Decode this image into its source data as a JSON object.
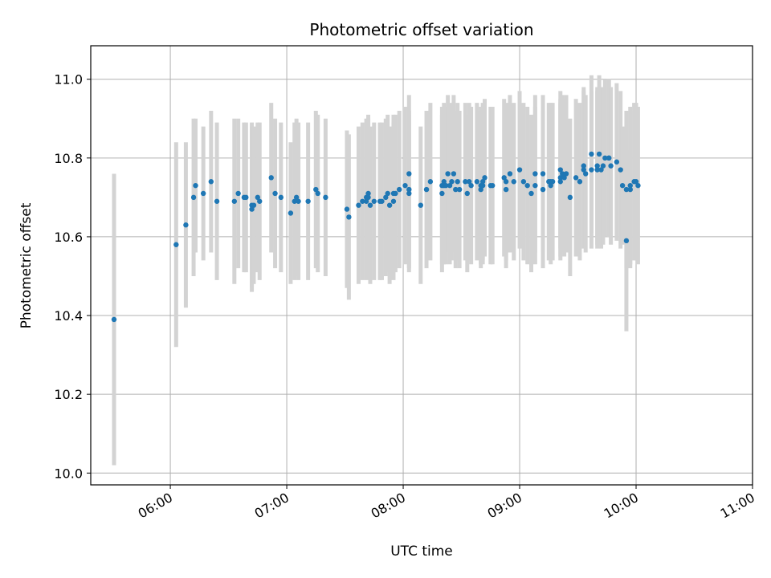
{
  "chart_data": {
    "type": "scatter",
    "title": "Photometric offset variation",
    "xlabel": "UTC time",
    "ylabel": "Photometric offset",
    "x_tick_labels": [
      "06:00",
      "07:00",
      "08:00",
      "09:00",
      "10:00",
      "11:00"
    ],
    "y_tick_labels": [
      "10.0",
      "10.2",
      "10.4",
      "10.6",
      "10.8",
      "11.0"
    ],
    "y_ticks": [
      10.0,
      10.2,
      10.4,
      10.6,
      10.8,
      11.0
    ],
    "grid": true,
    "colors": {
      "points": "#1f77b4",
      "error_bars": "#d3d3d3",
      "grid": "#b0b0b0"
    },
    "series": [
      {
        "x": [
          "05:31",
          "06:03",
          "06:08",
          "06:12",
          "06:13",
          "06:17",
          "06:21",
          "06:24",
          "06:33",
          "06:35",
          "06:38",
          "06:39",
          "06:42",
          "06:42",
          "06:43",
          "06:45",
          "06:46",
          "06:52",
          "06:54",
          "06:57",
          "07:02",
          "07:04",
          "07:05",
          "07:06",
          "07:11",
          "07:15",
          "07:16",
          "07:20",
          "07:31",
          "07:32",
          "07:37",
          "07:39",
          "07:41",
          "07:41",
          "07:42",
          "07:42",
          "07:43",
          "07:45",
          "07:48",
          "07:49",
          "07:51",
          "07:52",
          "07:53",
          "07:55",
          "07:55",
          "07:56",
          "07:58",
          "08:01",
          "08:03",
          "08:03",
          "08:03",
          "08:09",
          "08:12",
          "08:14",
          "08:20",
          "08:20",
          "08:21",
          "08:21",
          "08:22",
          "08:23",
          "08:24",
          "08:25",
          "08:26",
          "08:27",
          "08:28",
          "08:29",
          "08:32",
          "08:33",
          "08:34",
          "08:35",
          "08:38",
          "08:40",
          "08:40",
          "08:41",
          "08:41",
          "08:42",
          "08:45",
          "08:46",
          "08:52",
          "08:53",
          "08:53",
          "08:55",
          "08:57",
          "09:00",
          "09:02",
          "09:04",
          "09:06",
          "09:08",
          "09:08",
          "09:12",
          "09:12",
          "09:15",
          "09:16",
          "09:16",
          "09:17",
          "09:21",
          "09:21",
          "09:21",
          "09:22",
          "09:23",
          "09:24",
          "09:26",
          "09:29",
          "09:31",
          "09:33",
          "09:33",
          "09:34",
          "09:37",
          "09:37",
          "09:40",
          "09:40",
          "09:41",
          "09:42",
          "09:43",
          "09:44",
          "09:46",
          "09:46",
          "09:47",
          "09:50",
          "09:52",
          "09:53",
          "09:55",
          "09:55",
          "09:57",
          "09:57",
          "09:59",
          "10:00",
          "10:01"
        ],
        "y": [
          10.39,
          10.58,
          10.63,
          10.7,
          10.73,
          10.71,
          10.74,
          10.69,
          10.69,
          10.71,
          10.7,
          10.7,
          10.68,
          10.67,
          10.68,
          10.7,
          10.69,
          10.75,
          10.71,
          10.7,
          10.66,
          10.69,
          10.7,
          10.69,
          10.69,
          10.72,
          10.71,
          10.7,
          10.67,
          10.65,
          10.68,
          10.69,
          10.7,
          10.69,
          10.71,
          10.7,
          10.68,
          10.69,
          10.69,
          10.69,
          10.7,
          10.71,
          10.68,
          10.69,
          10.71,
          10.71,
          10.72,
          10.73,
          10.76,
          10.71,
          10.72,
          10.68,
          10.72,
          10.74,
          10.71,
          10.73,
          10.74,
          10.73,
          10.73,
          10.76,
          10.73,
          10.74,
          10.76,
          10.72,
          10.74,
          10.72,
          10.74,
          10.71,
          10.74,
          10.73,
          10.74,
          10.72,
          10.73,
          10.73,
          10.74,
          10.75,
          10.73,
          10.73,
          10.75,
          10.72,
          10.74,
          10.76,
          10.74,
          10.77,
          10.74,
          10.73,
          10.71,
          10.73,
          10.76,
          10.76,
          10.72,
          10.74,
          10.74,
          10.73,
          10.74,
          10.75,
          10.74,
          10.77,
          10.76,
          10.75,
          10.76,
          10.7,
          10.75,
          10.74,
          10.77,
          10.78,
          10.76,
          10.77,
          10.81,
          10.77,
          10.78,
          10.81,
          10.77,
          10.78,
          10.8,
          10.8,
          10.8,
          10.78,
          10.79,
          10.77,
          10.73,
          10.59,
          10.72,
          10.73,
          10.72,
          10.74,
          10.74,
          10.73
        ],
        "yerr": [
          0.37,
          0.26,
          0.21,
          0.2,
          0.17,
          0.17,
          0.18,
          0.2,
          0.21,
          0.19,
          0.19,
          0.19,
          0.21,
          0.21,
          0.2,
          0.19,
          0.2,
          0.19,
          0.19,
          0.19,
          0.18,
          0.2,
          0.2,
          0.2,
          0.2,
          0.2,
          0.2,
          0.2,
          0.2,
          0.21,
          0.2,
          0.2,
          0.2,
          0.2,
          0.2,
          0.2,
          0.2,
          0.2,
          0.2,
          0.2,
          0.2,
          0.2,
          0.2,
          0.2,
          0.2,
          0.2,
          0.2,
          0.2,
          0.2,
          0.2,
          0.2,
          0.2,
          0.2,
          0.2,
          0.2,
          0.2,
          0.2,
          0.2,
          0.2,
          0.2,
          0.2,
          0.2,
          0.2,
          0.2,
          0.2,
          0.2,
          0.2,
          0.2,
          0.2,
          0.2,
          0.2,
          0.2,
          0.2,
          0.2,
          0.2,
          0.2,
          0.2,
          0.2,
          0.2,
          0.2,
          0.2,
          0.2,
          0.2,
          0.2,
          0.2,
          0.2,
          0.2,
          0.2,
          0.2,
          0.2,
          0.2,
          0.2,
          0.2,
          0.2,
          0.2,
          0.2,
          0.2,
          0.2,
          0.2,
          0.2,
          0.2,
          0.2,
          0.2,
          0.2,
          0.2,
          0.2,
          0.2,
          0.2,
          0.2,
          0.2,
          0.2,
          0.2,
          0.2,
          0.2,
          0.2,
          0.2,
          0.2,
          0.2,
          0.2,
          0.2,
          0.15,
          0.23,
          0.2,
          0.2,
          0.2,
          0.2,
          0.2,
          0.2
        ]
      }
    ]
  }
}
